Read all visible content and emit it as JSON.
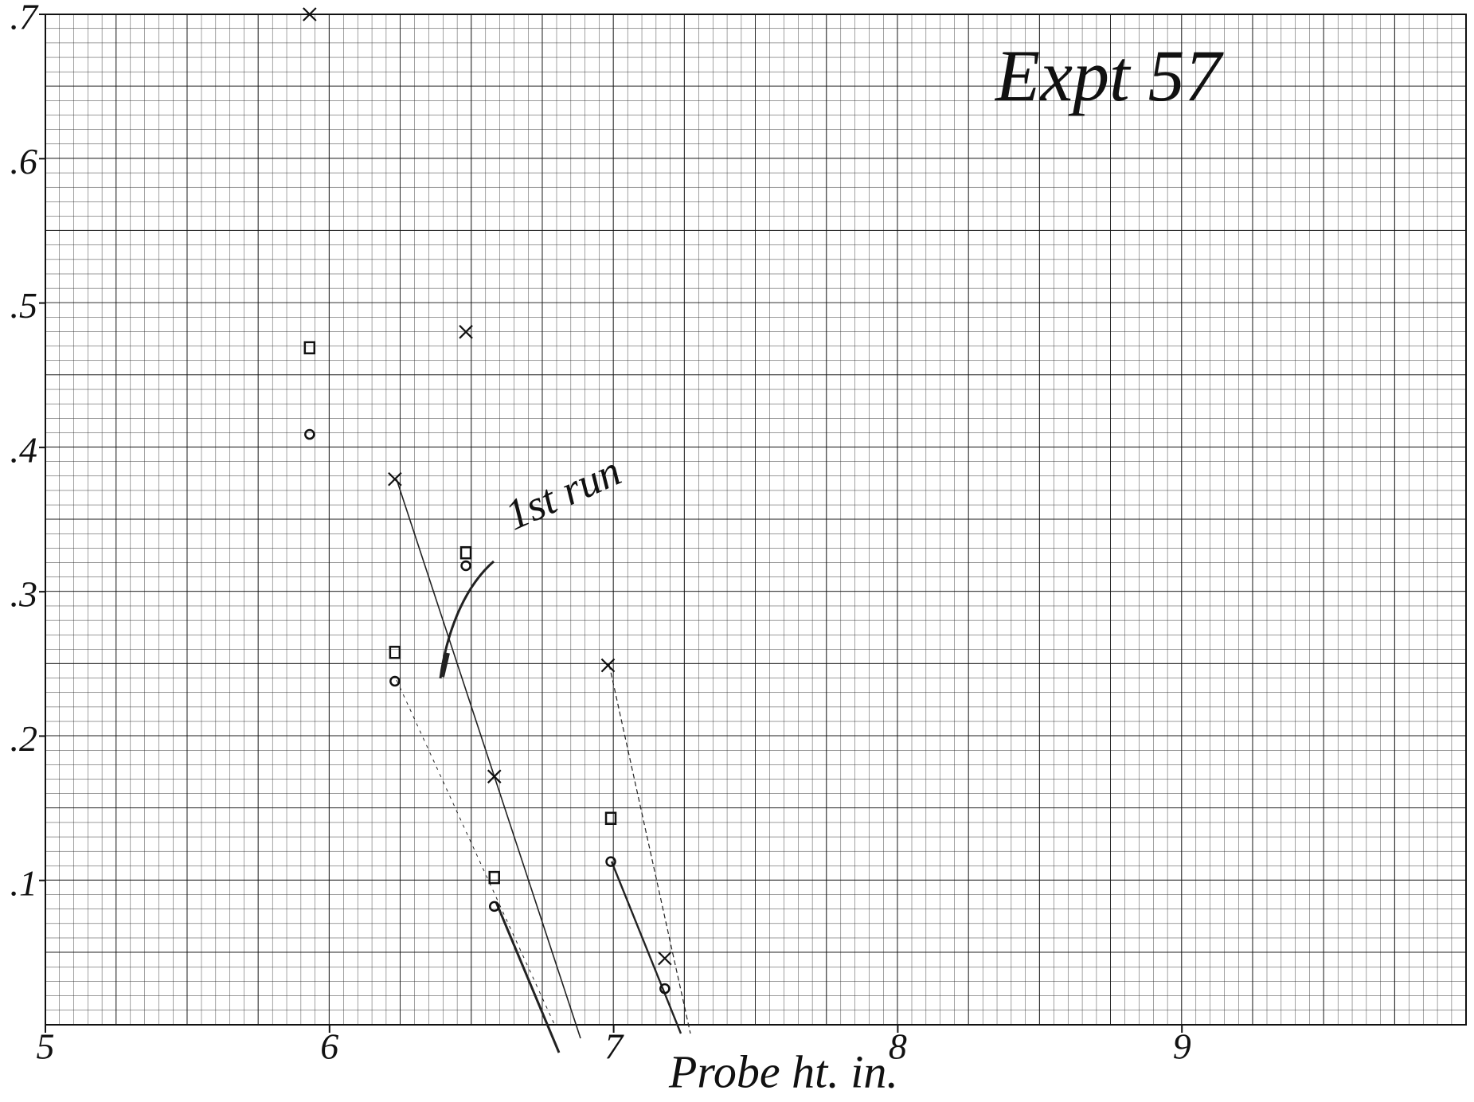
{
  "chart_data": {
    "type": "scatter",
    "x_label": "Probe ht. in.",
    "annotations": [
      "Expt 57",
      "1st run"
    ],
    "xlim": [
      5,
      10
    ],
    "ylim": [
      0,
      0.7
    ],
    "xticks": [
      5,
      6,
      7,
      8,
      9
    ],
    "yticks": [
      {
        "value": 0.1,
        "label": ".1"
      },
      {
        "value": 0.2,
        "label": ".2"
      },
      {
        "value": 0.3,
        "label": ".3"
      },
      {
        "value": 0.4,
        "label": ".4"
      },
      {
        "value": 0.5,
        "label": ".5"
      },
      {
        "value": 0.6,
        "label": ".6"
      },
      {
        "value": 0.7,
        "label": ".7"
      }
    ],
    "grid": true,
    "series": [
      {
        "marker": "x",
        "color": "#111111",
        "x": [
          5.93,
          6.48,
          6.23,
          6.58,
          6.98,
          7.18
        ],
        "values": [
          0.7,
          0.48,
          0.378,
          0.172,
          0.249,
          0.046
        ]
      },
      {
        "marker": "square",
        "color": "#111111",
        "x": [
          5.93,
          6.48,
          6.23,
          6.58,
          6.99
        ],
        "values": [
          0.469,
          0.327,
          0.258,
          0.102,
          0.143
        ]
      },
      {
        "marker": "circle",
        "color": "#111111",
        "x": [
          5.93,
          6.48,
          6.23,
          6.58,
          6.99,
          7.18
        ],
        "values": [
          0.409,
          0.318,
          0.238,
          0.082,
          0.113,
          0.025
        ]
      }
    ]
  }
}
